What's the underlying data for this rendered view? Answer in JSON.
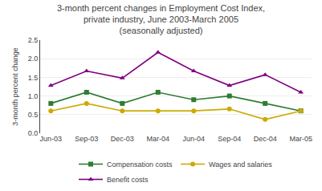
{
  "chart_data": {
    "type": "line",
    "title": "3-month percent changes in Employment Cost Index,\nprivate industry, June 2003-March 2005\n(seasonally adjusted)",
    "y_label": "3-month percent change",
    "categories": [
      "Jun-03",
      "Sep-03",
      "Dec-03",
      "Mar-04",
      "Jun-04",
      "Sep-04",
      "Dec-04",
      "Mar-05"
    ],
    "ylim": [
      0.0,
      2.5
    ],
    "yticks": [
      {
        "value": 0.0,
        "label": "0.0"
      },
      0.5,
      {
        "value": 1.0,
        "label": "1.0"
      },
      1.5,
      {
        "value": 2.0,
        "label": "2.0"
      },
      2.5
    ],
    "grid": true,
    "legend": "bottom",
    "series": [
      {
        "name": "Compensation costs",
        "color": "#2e7d32",
        "marker": "square",
        "values": [
          0.8,
          1.1,
          0.8,
          1.1,
          0.9,
          1.0,
          0.8,
          0.6
        ]
      },
      {
        "name": "Wages and salaries",
        "color": "#ccaa00",
        "marker": "circle",
        "values": [
          0.6,
          0.8,
          0.6,
          0.6,
          0.6,
          0.65,
          0.37,
          0.6
        ]
      },
      {
        "name": "Benefit costs",
        "color": "#800080",
        "marker": "triangle-up",
        "values": [
          1.28,
          1.67,
          1.48,
          2.17,
          1.67,
          1.28,
          1.57,
          1.1
        ]
      }
    ]
  }
}
